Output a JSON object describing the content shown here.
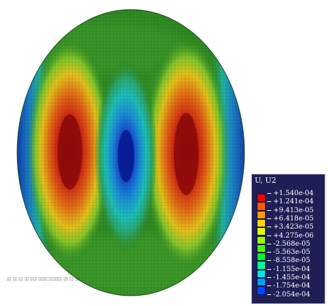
{
  "legend": {
    "title": "U, U2",
    "levels": [
      {
        "label": "+1.540e-04",
        "color": "#ff0000"
      },
      {
        "label": "+1.241e-04",
        "color": "#ff5a00"
      },
      {
        "label": "+9.413e-05",
        "color": "#ff9a00"
      },
      {
        "label": "+6.418e-05",
        "color": "#ffd500"
      },
      {
        "label": "+3.423e-05",
        "color": "#e5ff00"
      },
      {
        "label": "+4.275e-06",
        "color": "#9cff00"
      },
      {
        "label": "-2.568e-05",
        "color": "#46ff00"
      },
      {
        "label": "-5.563e-05",
        "color": "#00ff2a"
      },
      {
        "label": "-8.558e-05",
        "color": "#00ff9a"
      },
      {
        "label": "-1.155e-04",
        "color": "#00e6e6"
      },
      {
        "label": "-1.455e-04",
        "color": "#009cff"
      },
      {
        "label": "-1.754e-04",
        "color": "#0046ff"
      },
      {
        "label": "-2.054e-04",
        "color": "#0000ff"
      }
    ]
  },
  "model": {
    "shape": "circular-plate",
    "field": "U2 displacement mode shape",
    "mesh": "visible",
    "colors": {
      "background": "#2b7a1f",
      "max": "#9a0a0a",
      "min": "#0c2fae",
      "mesh_line": "#0a2a0a"
    }
  }
}
